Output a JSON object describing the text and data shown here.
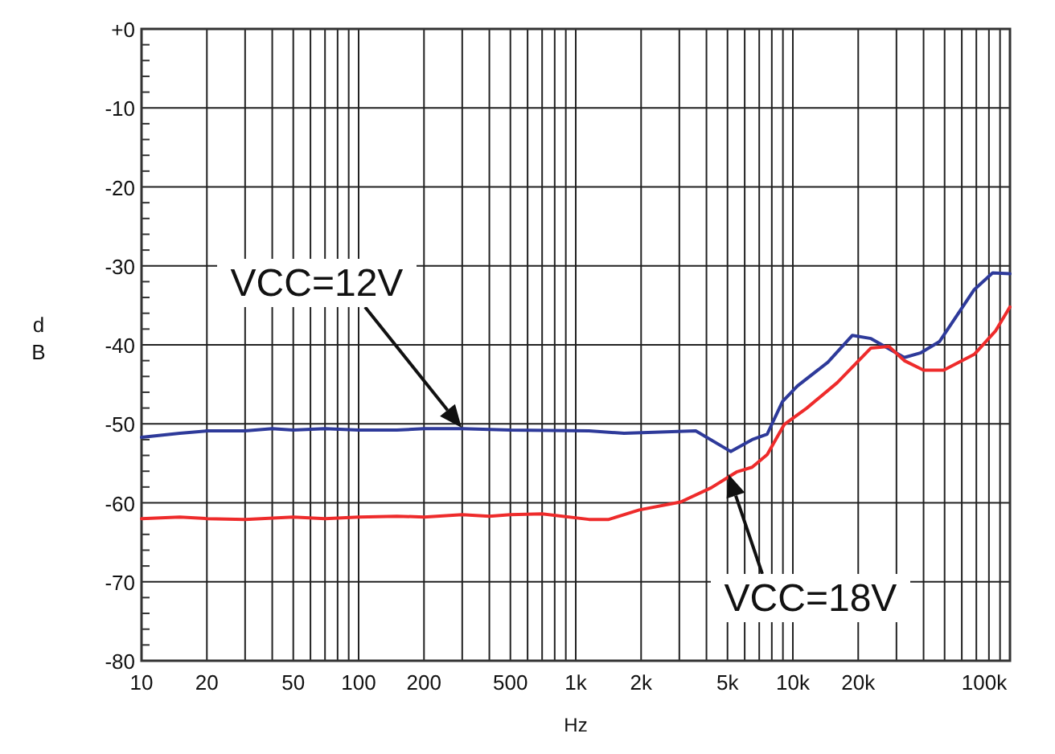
{
  "chart_data": {
    "type": "line",
    "xlabel": "Hz",
    "ylabel": "dB",
    "log": "x",
    "grid": true,
    "xlim": [
      10,
      100000
    ],
    "ylim": [
      -80,
      0
    ],
    "xticks": [
      10,
      20,
      {
        "value": 30,
        "label": null
      },
      {
        "value": 40,
        "label": null
      },
      50,
      {
        "value": 60,
        "label": null
      },
      {
        "value": 70,
        "label": null
      },
      {
        "value": 80,
        "label": null
      },
      {
        "value": 90,
        "label": null
      },
      100,
      200,
      {
        "value": 300,
        "label": null
      },
      {
        "value": 400,
        "label": null
      },
      500,
      {
        "value": 600,
        "label": null
      },
      {
        "value": 700,
        "label": null
      },
      {
        "value": 800,
        "label": null
      },
      {
        "value": 900,
        "label": null
      },
      {
        "value": 1000,
        "label": "1k"
      },
      {
        "value": 2000,
        "label": "2k"
      },
      {
        "value": 3000,
        "label": null
      },
      {
        "value": 4000,
        "label": null
      },
      {
        "value": 5000,
        "label": "5k"
      },
      {
        "value": 6000,
        "label": null
      },
      {
        "value": 7000,
        "label": null
      },
      {
        "value": 8000,
        "label": null
      },
      {
        "value": 9000,
        "label": null
      },
      {
        "value": 10000,
        "label": "10k"
      },
      {
        "value": 20000,
        "label": "20k"
      },
      {
        "value": 30000,
        "label": null
      },
      {
        "value": 40000,
        "label": null
      },
      {
        "value": 50000,
        "label": null
      },
      {
        "value": 60000,
        "label": null
      },
      {
        "value": 70000,
        "label": null
      },
      {
        "value": 80000,
        "label": null
      },
      {
        "value": 90000,
        "label": null
      },
      {
        "value": 100000,
        "label": "100k"
      }
    ],
    "yticks": [
      {
        "value": 0,
        "label": "+0"
      },
      {
        "value": -2,
        "label": null
      },
      {
        "value": -4,
        "label": null
      },
      {
        "value": -6,
        "label": null
      },
      {
        "value": -8,
        "label": null
      },
      -10,
      {
        "value": -12,
        "label": null
      },
      {
        "value": -14,
        "label": null
      },
      {
        "value": -16,
        "label": null
      },
      {
        "value": -18,
        "label": null
      },
      -20,
      {
        "value": -22,
        "label": null
      },
      {
        "value": -24,
        "label": null
      },
      {
        "value": -26,
        "label": null
      },
      {
        "value": -28,
        "label": null
      },
      -30,
      {
        "value": -32,
        "label": null
      },
      {
        "value": -34,
        "label": null
      },
      {
        "value": -36,
        "label": null
      },
      {
        "value": -38,
        "label": null
      },
      -40,
      {
        "value": -42,
        "label": null
      },
      {
        "value": -44,
        "label": null
      },
      {
        "value": -46,
        "label": null
      },
      {
        "value": -48,
        "label": null
      },
      -50,
      {
        "value": -52,
        "label": null
      },
      {
        "value": -54,
        "label": null
      },
      {
        "value": -56,
        "label": null
      },
      {
        "value": -58,
        "label": null
      },
      -60,
      {
        "value": -62,
        "label": null
      },
      {
        "value": -64,
        "label": null
      },
      {
        "value": -66,
        "label": null
      },
      {
        "value": -68,
        "label": null
      },
      -70,
      {
        "value": -72,
        "label": null
      },
      {
        "value": -74,
        "label": null
      },
      {
        "value": -76,
        "label": null
      },
      {
        "value": -78,
        "label": null
      },
      -80
    ],
    "series": [
      {
        "color": "#2e3a9a",
        "x": [
          10,
          15,
          20,
          30,
          40,
          50,
          70,
          100,
          150,
          200,
          300,
          500,
          1150,
          1670,
          3570,
          5170,
          6490,
          7620,
          8950,
          10500,
          14500,
          18800,
          22900,
          32600,
          38900,
          47300,
          68500,
          83200,
          100000
        ],
        "values": [
          -51.7,
          -51.2,
          -50.9,
          -50.9,
          -50.6,
          -50.8,
          -50.6,
          -50.8,
          -50.8,
          -50.6,
          -50.6,
          -50.8,
          -50.9,
          -51.2,
          -50.9,
          -53.5,
          -52,
          -51.3,
          -47.2,
          -45.2,
          -42.2,
          -38.8,
          -39.2,
          -41.6,
          -41,
          -39.6,
          -33,
          -30.9,
          -31
        ]
      },
      {
        "color": "#ee2b2b",
        "x": [
          10,
          15,
          20,
          30,
          50,
          70,
          100,
          150,
          200,
          300,
          400,
          500,
          700,
          1150,
          1420,
          1960,
          3040,
          4200,
          5500,
          6490,
          7620,
          9120,
          11600,
          16000,
          22900,
          27700,
          32600,
          40000,
          49500,
          68500,
          86000,
          100000
        ],
        "values": [
          -62,
          -61.8,
          -62,
          -62.1,
          -61.8,
          -62,
          -61.8,
          -61.7,
          -61.8,
          -61.5,
          -61.7,
          -61.5,
          -61.4,
          -62.1,
          -62.1,
          -60.9,
          -59.9,
          -58.1,
          -56.1,
          -55.5,
          -53.9,
          -50.1,
          -48,
          -44.8,
          -40.4,
          -40.2,
          -42,
          -43.2,
          -43.2,
          -41.2,
          -38.2,
          -35.2
        ]
      }
    ],
    "annotations": [
      "VCC=12V",
      "VCC=18V"
    ]
  }
}
